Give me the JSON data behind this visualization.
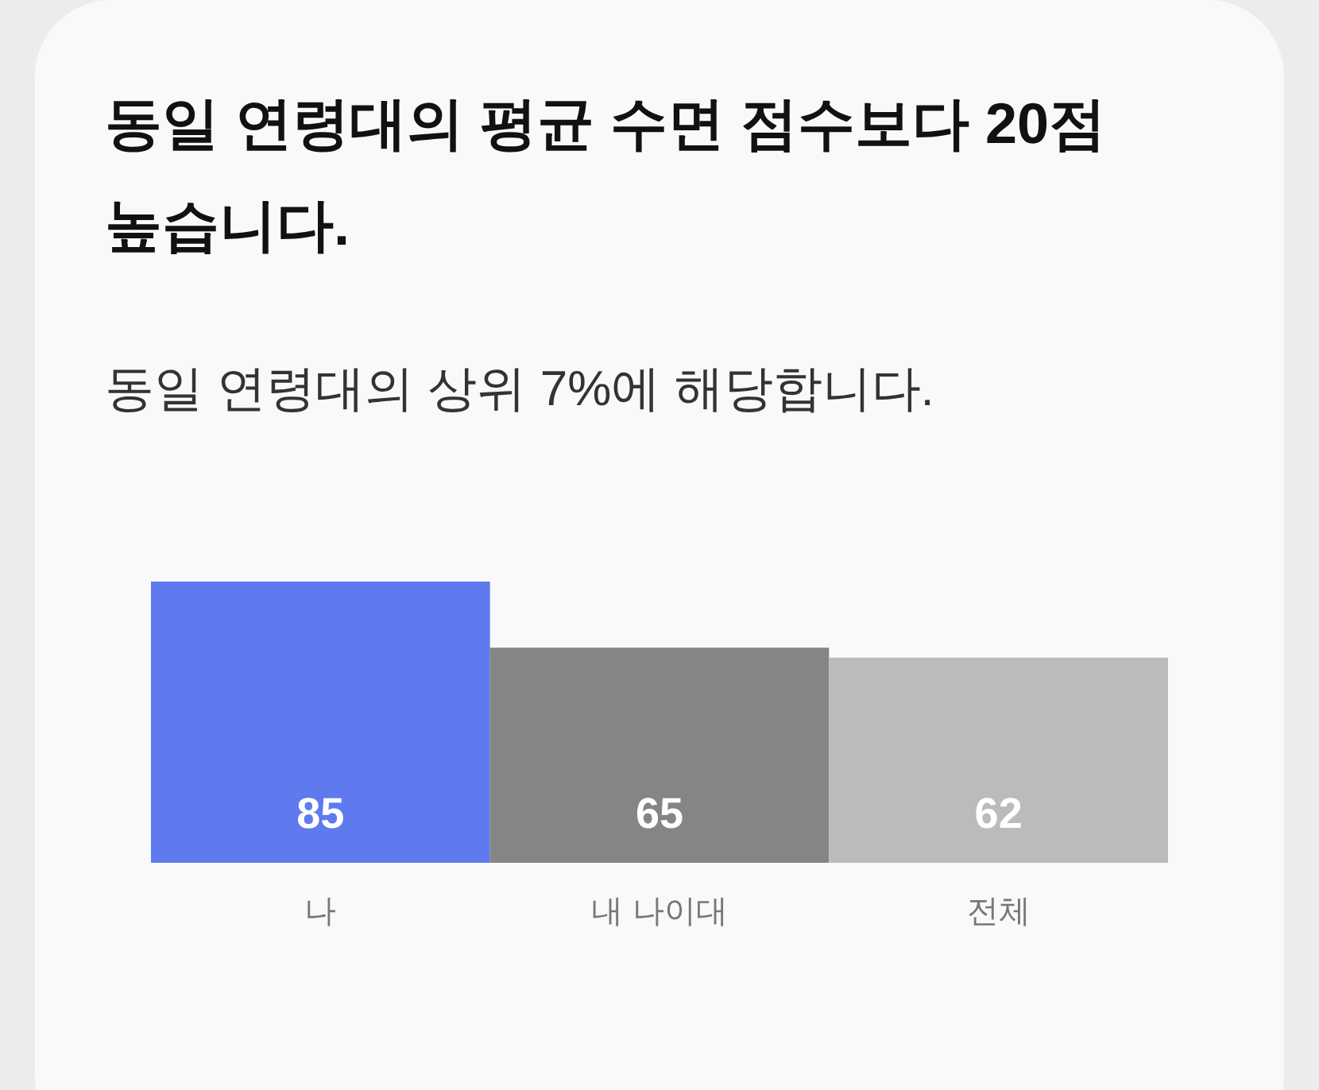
{
  "chart_data": {
    "type": "bar",
    "title": "동일 연령대의 평균 수면 점수보다 20점 높습니다.",
    "subtitle": "동일 연령대의 상위 7%에 해당합니다.",
    "categories": [
      "나",
      "내 나이대",
      "전체"
    ],
    "values": [
      85,
      65,
      62
    ],
    "colors": [
      "#5f7aee",
      "#858587",
      "#bbbbbb"
    ],
    "data_labels": true
  }
}
